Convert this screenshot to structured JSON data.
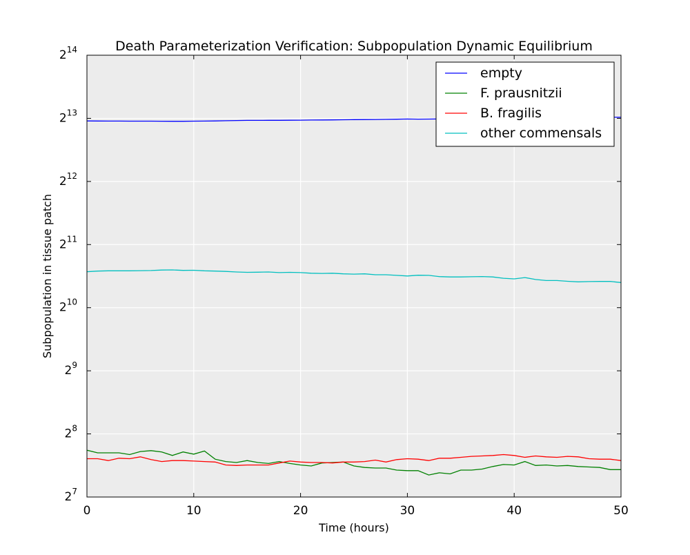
{
  "chart_data": {
    "type": "line",
    "title": "Death Parameterization Verification: Subpopulation Dynamic Equilibrium",
    "xlabel": "Time (hours)",
    "ylabel": "Subpopulation in tissue patch",
    "x_ticks": [
      "0",
      "10",
      "20",
      "30",
      "40",
      "50"
    ],
    "y_scale": "log2",
    "y_ticks": [
      {
        "base": "2",
        "exp": "7"
      },
      {
        "base": "2",
        "exp": "8"
      },
      {
        "base": "2",
        "exp": "9"
      },
      {
        "base": "2",
        "exp": "10"
      },
      {
        "base": "2",
        "exp": "11"
      },
      {
        "base": "2",
        "exp": "12"
      },
      {
        "base": "2",
        "exp": "13"
      },
      {
        "base": "2",
        "exp": "14"
      }
    ],
    "xlim": [
      0,
      50
    ],
    "ylim": [
      128,
      16384
    ],
    "grid": true,
    "legend_position": "top-right",
    "background_color": "#ececec",
    "x": [
      0,
      1,
      2,
      3,
      4,
      5,
      6,
      7,
      8,
      9,
      10,
      11,
      12,
      13,
      14,
      15,
      16,
      17,
      18,
      19,
      20,
      21,
      22,
      23,
      24,
      25,
      26,
      27,
      28,
      29,
      30,
      31,
      32,
      33,
      34,
      35,
      36,
      37,
      38,
      39,
      40,
      41,
      42,
      43,
      44,
      45,
      46,
      47,
      48,
      49,
      50
    ],
    "series": [
      {
        "name": "empty",
        "color": "#0000ff",
        "values": [
          7960,
          7955,
          7950,
          7950,
          7945,
          7945,
          7940,
          7935,
          7930,
          7930,
          7940,
          7950,
          7960,
          7980,
          8000,
          8010,
          8010,
          8015,
          8015,
          8020,
          8030,
          8040,
          8045,
          8055,
          8065,
          8075,
          8080,
          8090,
          8100,
          8115,
          8130,
          8120,
          8125,
          8135,
          8145,
          8155,
          8165,
          8175,
          8180,
          8190,
          8200,
          8210,
          8220,
          8230,
          8240,
          8250,
          8260,
          8270,
          8280,
          8285,
          8290
        ]
      },
      {
        "name": "F. prausnitzii",
        "color": "#008000",
        "values": [
          214,
          208,
          208,
          208,
          204,
          211,
          213,
          210,
          202,
          210,
          205,
          212,
          194,
          189,
          187,
          191,
          187,
          185,
          189,
          185,
          182,
          180,
          186,
          187,
          188,
          180,
          177,
          176,
          176,
          172,
          171,
          171,
          163,
          167,
          165,
          172,
          172,
          174,
          179,
          183,
          182,
          189,
          181,
          182,
          180,
          181,
          179,
          178,
          177,
          173,
          173
        ]
      },
      {
        "name": "B. fragilis",
        "color": "#ff0000",
        "values": [
          195,
          195,
          191,
          196,
          195,
          199,
          193,
          189,
          191,
          191,
          190,
          189,
          188,
          182,
          181,
          182,
          182,
          182,
          186,
          190,
          188,
          187,
          187,
          186,
          188,
          188,
          189,
          192,
          188,
          193,
          195,
          194,
          191,
          196,
          196,
          198,
          200,
          201,
          202,
          204,
          202,
          198,
          201,
          199,
          198,
          200,
          199,
          195,
          194,
          194,
          191
        ]
      },
      {
        "name": "other commensals",
        "color": "#00bfbf",
        "values": [
          1520,
          1530,
          1535,
          1535,
          1535,
          1538,
          1540,
          1548,
          1550,
          1542,
          1545,
          1535,
          1530,
          1525,
          1515,
          1510,
          1512,
          1515,
          1505,
          1510,
          1505,
          1495,
          1492,
          1495,
          1485,
          1480,
          1485,
          1470,
          1470,
          1460,
          1450,
          1462,
          1460,
          1440,
          1435,
          1435,
          1438,
          1442,
          1435,
          1415,
          1405,
          1425,
          1395,
          1380,
          1380,
          1368,
          1360,
          1364,
          1366,
          1366,
          1350
        ]
      }
    ]
  }
}
